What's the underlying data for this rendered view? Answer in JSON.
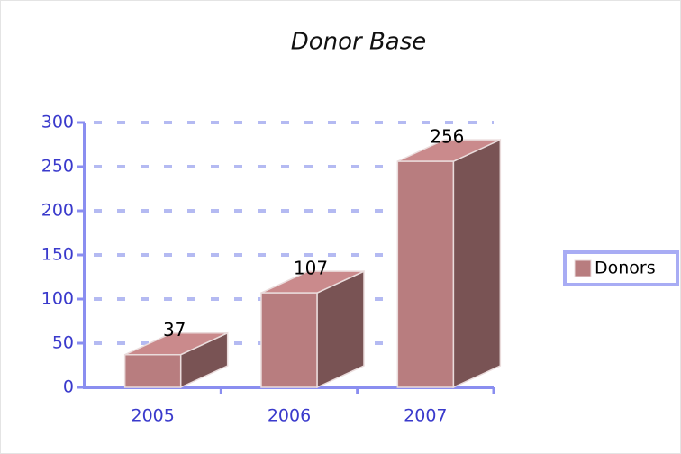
{
  "chart_data": {
    "type": "bar3d",
    "title": "Donor Base",
    "categories": [
      "2005",
      "2006",
      "2007"
    ],
    "series": [
      {
        "name": "Donors",
        "color": "#b87d7f",
        "values": [
          37,
          107,
          256
        ]
      }
    ],
    "ylim": [
      0,
      300
    ],
    "yticks": [
      0,
      50,
      100,
      150,
      200,
      250,
      300
    ],
    "grid": true,
    "legend": "right"
  }
}
